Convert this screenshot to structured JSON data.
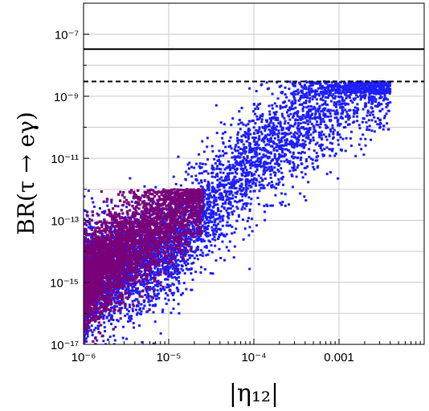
{
  "chart_data": {
    "type": "scatter",
    "xlabel": "|η₁₂|",
    "ylabel": "BR(τ → eγ)",
    "x_scale": "log",
    "y_scale": "log",
    "xlim": [
      1e-06,
      0.01
    ],
    "ylim": [
      1e-17,
      1e-06
    ],
    "x_tick_labels": [
      "10⁻⁶",
      "10⁻⁵",
      "10⁻⁴",
      "0.001"
    ],
    "x_tick_values": [
      1e-06,
      1e-05,
      0.0001,
      0.001
    ],
    "y_tick_labels": [
      "10⁻¹⁷",
      "10⁻¹⁵",
      "10⁻¹³",
      "10⁻¹¹",
      "10⁻⁹",
      "10⁻⁷"
    ],
    "y_tick_values": [
      1e-17,
      1e-15,
      1e-13,
      1e-11,
      1e-09,
      1e-07
    ],
    "grid": true,
    "reference_lines": [
      {
        "style": "solid",
        "y": 3.3e-08
      },
      {
        "style": "dashed",
        "y": 3e-09
      }
    ],
    "series": [
      {
        "color": "#1f1fff",
        "x_range": [
          1e-06,
          0.004
        ],
        "y_range": [
          1e-17,
          3e-09
        ],
        "trend_points": [
          {
            "x": 1e-06,
            "y": 1e-15
          },
          {
            "x": 1e-05,
            "y": 1e-14
          },
          {
            "x": 0.0001,
            "y": 1e-11
          },
          {
            "x": 0.001,
            "y": 1e-09
          },
          {
            "x": 0.003,
            "y": 3e-09
          }
        ]
      },
      {
        "color": "#7a007a",
        "x_range": [
          1e-06,
          2.5e-05
        ],
        "y_range": [
          1e-17,
          1e-12
        ],
        "trend_points": [
          {
            "x": 1e-06,
            "y": 1e-15
          },
          {
            "x": 5e-06,
            "y": 3e-14
          },
          {
            "x": 1e-05,
            "y": 1e-13
          },
          {
            "x": 2.5e-05,
            "y": 1e-12
          }
        ]
      }
    ],
    "colors": {
      "blue_points": "#1f1fff",
      "purple_points": "#7a007a",
      "grid": "#cccccc",
      "frame": "#000000"
    }
  }
}
